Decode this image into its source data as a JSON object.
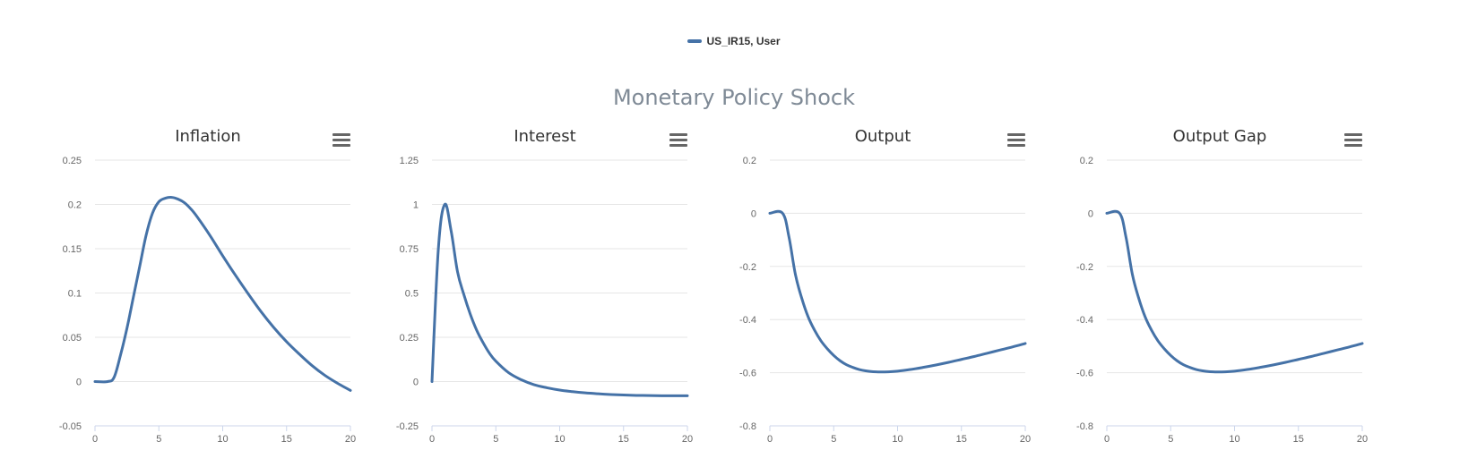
{
  "legend": {
    "label": "US_IR15, User",
    "color": "#4572a7"
  },
  "title": "Monetary Policy Shock",
  "colors": {
    "series": "#4572a7",
    "grid": "#e6e6e6",
    "axis": "#ccd6eb",
    "title": "#7f8a96"
  },
  "chart_data": [
    {
      "type": "line",
      "title": "Inflation",
      "xlim": [
        0,
        20
      ],
      "ylim": [
        -0.05,
        0.25
      ],
      "xticks": [
        0,
        5,
        10,
        15,
        20
      ],
      "yticks": [
        -0.05,
        0,
        0.05,
        0.1,
        0.15,
        0.2,
        0.25
      ],
      "ytick_labels": [
        "-0.05",
        "0",
        "0.05",
        "0.1",
        "0.15",
        "0.2",
        "0.25"
      ],
      "grid": true,
      "series": [
        {
          "name": "US_IR15, User",
          "x": [
            0,
            1,
            1.5,
            2,
            2.5,
            3,
            3.5,
            4,
            4.5,
            5,
            5.5,
            6,
            6.5,
            7,
            7.5,
            8,
            9,
            10,
            11,
            12,
            13,
            14,
            15,
            16,
            17,
            18,
            19,
            20
          ],
          "y": [
            0,
            0,
            0.005,
            0.03,
            0.06,
            0.095,
            0.13,
            0.165,
            0.19,
            0.203,
            0.207,
            0.208,
            0.206,
            0.202,
            0.195,
            0.186,
            0.165,
            0.142,
            0.12,
            0.099,
            0.079,
            0.061,
            0.045,
            0.031,
            0.018,
            0.007,
            -0.002,
            -0.01
          ]
        }
      ]
    },
    {
      "type": "line",
      "title": "Interest",
      "xlim": [
        0,
        20
      ],
      "ylim": [
        -0.25,
        1.25
      ],
      "xticks": [
        0,
        5,
        10,
        15,
        20
      ],
      "yticks": [
        -0.25,
        0,
        0.25,
        0.5,
        0.75,
        1,
        1.25
      ],
      "ytick_labels": [
        "-0.25",
        "0",
        "0.25",
        "0.5",
        "0.75",
        "1",
        "1.25"
      ],
      "grid": true,
      "series": [
        {
          "name": "US_IR15, User",
          "x": [
            0,
            0.5,
            1,
            1.5,
            2,
            2.5,
            3,
            3.5,
            4,
            4.5,
            5,
            6,
            7,
            8,
            9,
            10,
            11,
            12,
            13,
            14,
            15,
            16,
            17,
            18,
            19,
            20
          ],
          "y": [
            0,
            0.75,
            1,
            0.85,
            0.62,
            0.49,
            0.38,
            0.29,
            0.22,
            0.16,
            0.115,
            0.05,
            0.01,
            -0.018,
            -0.035,
            -0.048,
            -0.057,
            -0.064,
            -0.069,
            -0.073,
            -0.076,
            -0.078,
            -0.079,
            -0.08,
            -0.08,
            -0.08
          ]
        }
      ]
    },
    {
      "type": "line",
      "title": "Output",
      "xlim": [
        0,
        20
      ],
      "ylim": [
        -0.8,
        0.2
      ],
      "xticks": [
        0,
        5,
        10,
        15,
        20
      ],
      "yticks": [
        -0.8,
        -0.6,
        -0.4,
        -0.2,
        0,
        0.2
      ],
      "ytick_labels": [
        "-0.8",
        "-0.6",
        "-0.4",
        "-0.2",
        "0",
        "0.2"
      ],
      "grid": true,
      "series": [
        {
          "name": "US_IR15, User",
          "x": [
            0,
            1,
            1.5,
            2,
            2.5,
            3,
            3.5,
            4,
            4.5,
            5,
            5.5,
            6,
            6.5,
            7,
            7.5,
            8,
            8.5,
            9,
            10,
            11,
            12,
            13,
            14,
            15,
            16,
            17,
            18,
            19,
            20
          ],
          "y": [
            0,
            0,
            -0.09,
            -0.23,
            -0.32,
            -0.39,
            -0.44,
            -0.48,
            -0.51,
            -0.535,
            -0.555,
            -0.57,
            -0.58,
            -0.588,
            -0.593,
            -0.596,
            -0.597,
            -0.597,
            -0.594,
            -0.588,
            -0.58,
            -0.571,
            -0.561,
            -0.55,
            -0.539,
            -0.527,
            -0.515,
            -0.503,
            -0.49
          ]
        }
      ]
    },
    {
      "type": "line",
      "title": "Output Gap",
      "xlim": [
        0,
        20
      ],
      "ylim": [
        -0.8,
        0.2
      ],
      "xticks": [
        0,
        5,
        10,
        15,
        20
      ],
      "yticks": [
        -0.8,
        -0.6,
        -0.4,
        -0.2,
        0,
        0.2
      ],
      "ytick_labels": [
        "-0.8",
        "-0.6",
        "-0.4",
        "-0.2",
        "0",
        "0.2"
      ],
      "grid": true,
      "series": [
        {
          "name": "US_IR15, User",
          "x": [
            0,
            1,
            1.5,
            2,
            2.5,
            3,
            3.5,
            4,
            4.5,
            5,
            5.5,
            6,
            6.5,
            7,
            7.5,
            8,
            8.5,
            9,
            10,
            11,
            12,
            13,
            14,
            15,
            16,
            17,
            18,
            19,
            20
          ],
          "y": [
            0,
            0,
            -0.09,
            -0.23,
            -0.32,
            -0.39,
            -0.44,
            -0.48,
            -0.51,
            -0.535,
            -0.555,
            -0.57,
            -0.58,
            -0.588,
            -0.593,
            -0.596,
            -0.597,
            -0.597,
            -0.594,
            -0.588,
            -0.58,
            -0.571,
            -0.561,
            -0.55,
            -0.539,
            -0.527,
            -0.515,
            -0.503,
            -0.49
          ]
        }
      ]
    }
  ]
}
